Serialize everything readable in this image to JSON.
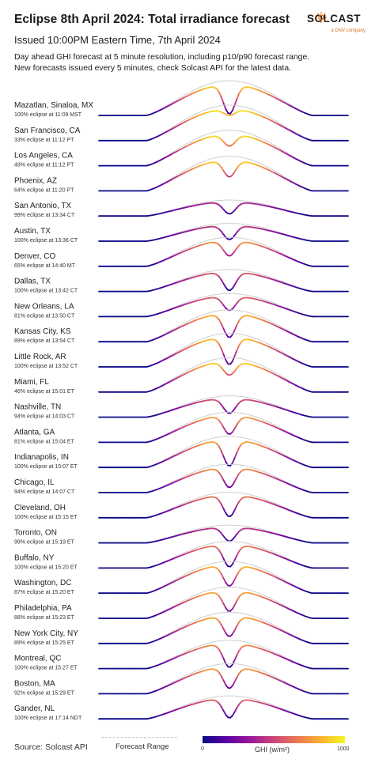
{
  "header": {
    "title": "Eclipse 8th April 2024: Total irradiance forecast",
    "subtitle": "Issued 10:00PM Eastern Time, 7th April 2024",
    "description_line1": "Day ahead GHI forecast at 5 minute resolution, including p10/p90 forecast range.",
    "description_line2": "New forecasts issued every 5 minutes, check Solcast API for the latest data."
  },
  "logo": {
    "word": "SOLCAST",
    "sub": "a DNV company",
    "accent": "#e0701a"
  },
  "footer": {
    "source": "Source: Solcast API",
    "range_label": "Forecast Range",
    "colorbar_min": "0",
    "colorbar_max": "1000",
    "colorbar_label": "GHI (w/m²)"
  },
  "colors": {
    "colormap": [
      "#0d0887",
      "#5b02a3",
      "#9a179b",
      "#cb4678",
      "#eb7852",
      "#fbb32f",
      "#f0f921"
    ],
    "range": "#cfcfcf"
  },
  "chart_data": {
    "type": "line",
    "color_by": "GHI (w/m²)",
    "color_range": [
      0,
      1000
    ],
    "cities": [
      {
        "name": "Mazatlan, Sinaloa, MX",
        "sub": "100% eclipse at 11:09 MST",
        "peak": 980,
        "dip": 0.05
      },
      {
        "name": "San Francisco, CA",
        "sub": "33% eclipse at 11:12 PT",
        "peak": 1000,
        "dip": 0.8
      },
      {
        "name": "Los Angeles, CA",
        "sub": "49% eclipse at 11:12 PT",
        "peak": 1000,
        "dip": 0.62
      },
      {
        "name": "Phoenix, AZ",
        "sub": "64% eclipse at 11:20 PT",
        "peak": 980,
        "dip": 0.45
      },
      {
        "name": "San Antonio, TX",
        "sub": "99% eclipse at 13:34 CT",
        "peak": 450,
        "dip": 0.15
      },
      {
        "name": "Austin, TX",
        "sub": "100% eclipse at 13:36 CT",
        "peak": 500,
        "dip": 0.1
      },
      {
        "name": "Denver, CO",
        "sub": "65% eclipse at 14:40 MT",
        "peak": 820,
        "dip": 0.4
      },
      {
        "name": "Dallas, TX",
        "sub": "100% eclipse at 13:42 CT",
        "peak": 620,
        "dip": 0.05
      },
      {
        "name": "New Orleans, LA",
        "sub": "81% eclipse at 13:50 CT",
        "peak": 650,
        "dip": 0.3
      },
      {
        "name": "Kansas City, KS",
        "sub": "89% eclipse at 13:54 CT",
        "peak": 900,
        "dip": 0.15
      },
      {
        "name": "Little Rock, AR",
        "sub": "100% eclipse at 13:52 CT",
        "peak": 950,
        "dip": 0.08
      },
      {
        "name": "Miami, FL",
        "sub": "46% eclipse at 15:01 ET",
        "peak": 970,
        "dip": 0.55
      },
      {
        "name": "Nashville, TN",
        "sub": "94% eclipse at 14:03 CT",
        "peak": 600,
        "dip": 0.2
      },
      {
        "name": "Atlanta, GA",
        "sub": "81% eclipse at 15:04 ET",
        "peak": 850,
        "dip": 0.3
      },
      {
        "name": "Indianapolis, IN",
        "sub": "100% eclipse at 15:07 ET",
        "peak": 880,
        "dip": 0.05
      },
      {
        "name": "Chicago, IL",
        "sub": "94% eclipse at 14:07 CT",
        "peak": 800,
        "dip": 0.2
      },
      {
        "name": "Cleveland, OH",
        "sub": "100% eclipse at 15:15 ET",
        "peak": 720,
        "dip": 0.05
      },
      {
        "name": "Toronto, ON",
        "sub": "99% eclipse at 15:19 ET",
        "peak": 500,
        "dip": 0.1
      },
      {
        "name": "Buffalo, NY",
        "sub": "100% eclipse at 15:20 ET",
        "peak": 750,
        "dip": 0.05
      },
      {
        "name": "Washington, DC",
        "sub": "87% eclipse at 15:20 ET",
        "peak": 900,
        "dip": 0.25
      },
      {
        "name": "Philadelphia, PA",
        "sub": "88% eclipse at 15:23 ET",
        "peak": 880,
        "dip": 0.25
      },
      {
        "name": "New York City, NY",
        "sub": "89% eclipse at 15:25 ET",
        "peak": 880,
        "dip": 0.25
      },
      {
        "name": "Montreal, QC",
        "sub": "100% eclipse at 15:27 ET",
        "peak": 800,
        "dip": 0.05
      },
      {
        "name": "Boston, MA",
        "sub": "92% eclipse at 15:29 ET",
        "peak": 850,
        "dip": 0.2
      },
      {
        "name": "Gander, NL",
        "sub": "100% eclipse at 17:14 NDT",
        "peak": 650,
        "dip": 0.05
      }
    ]
  }
}
